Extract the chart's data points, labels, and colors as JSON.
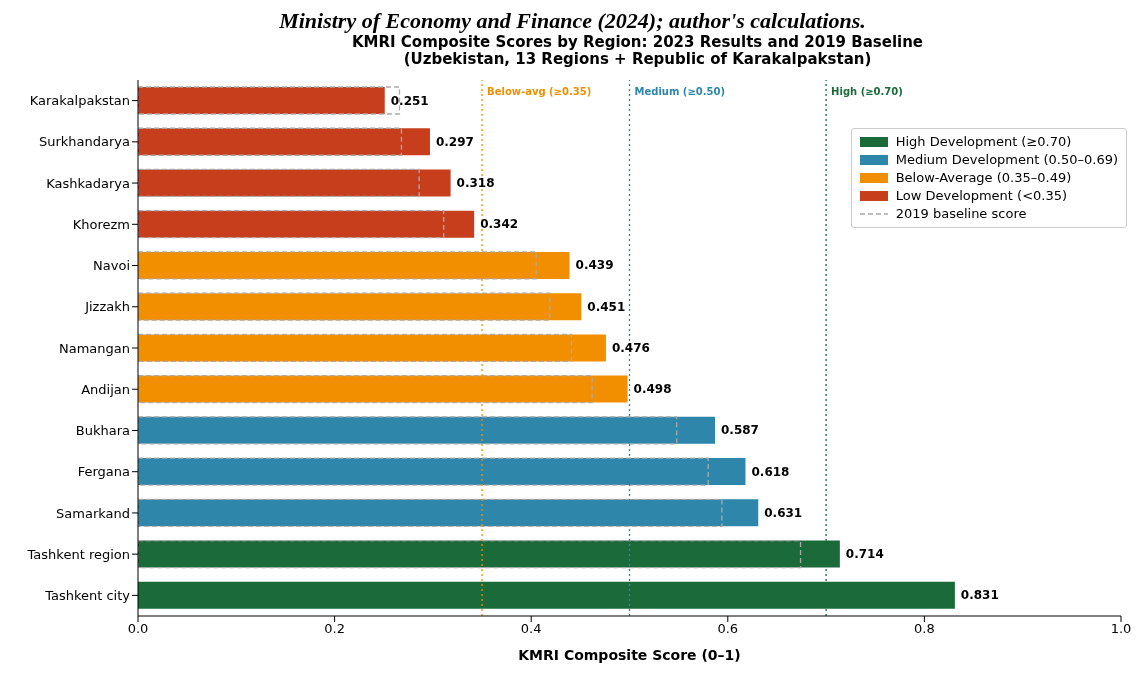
{
  "chart_data": {
    "type": "bar",
    "orientation": "horizontal",
    "title": "KMRI Composite Scores by Region: 2023 Results and 2019 Baseline\n(Uzbekistan, 13 Regions + Republic of Karakalpakstan)",
    "xlabel": "KMRI Composite Score (0–1)",
    "annotations": [
      "Ministry of Economy and Finance (2024); author's calculations."
    ],
    "categories": [
      "Karakalpakstan",
      "Surkhandarya",
      "Kashkadarya",
      "Khorezm",
      "Navoi",
      "Jizzakh",
      "Namangan",
      "Andijan",
      "Bukhara",
      "Fergana",
      "Samarkand",
      "Tashkent region",
      "Tashkent city"
    ],
    "series": [
      {
        "name": "High Development (≥0.70)",
        "color": "#1b6b3a",
        "values": [
          null,
          null,
          null,
          null,
          null,
          null,
          null,
          null,
          null,
          null,
          null,
          0.714,
          0.831
        ],
        "value_labels": [
          null,
          null,
          null,
          null,
          null,
          null,
          null,
          null,
          null,
          null,
          null,
          "0.714",
          "0.831"
        ]
      },
      {
        "name": "Medium Development (0.50–0.69)",
        "color": "#2e86ab",
        "values": [
          null,
          null,
          null,
          null,
          null,
          null,
          null,
          null,
          0.587,
          0.618,
          0.631,
          null,
          null
        ],
        "value_labels": [
          null,
          null,
          null,
          null,
          null,
          null,
          null,
          null,
          "0.587",
          "0.618",
          "0.631",
          null,
          null
        ]
      },
      {
        "name": "Below-Average (0.35–0.49)",
        "color": "#f18f01",
        "values": [
          null,
          null,
          null,
          null,
          0.439,
          0.451,
          0.476,
          0.498,
          null,
          null,
          null,
          null,
          null
        ],
        "value_labels": [
          null,
          null,
          null,
          null,
          "0.439",
          "0.451",
          "0.476",
          "0.498",
          null,
          null,
          null,
          null,
          null
        ]
      },
      {
        "name": "Low Development (<0.35)",
        "color": "#c73e1d",
        "values": [
          0.251,
          0.297,
          0.318,
          0.342,
          null,
          null,
          null,
          null,
          null,
          null,
          null,
          null,
          null
        ],
        "value_labels": [
          "0.251",
          "0.297",
          "0.318",
          "0.342",
          null,
          null,
          null,
          null,
          null,
          null,
          null,
          null,
          null
        ]
      },
      {
        "name": "2019 baseline score",
        "color": "#aaaaaa",
        "line_style": "dashed",
        "values": [
          0.266,
          0.268,
          0.286,
          0.311,
          0.405,
          0.419,
          0.441,
          0.462,
          0.548,
          0.58,
          0.594,
          0.674,
          null
        ]
      }
    ],
    "xlim": [
      0,
      1
    ],
    "xticks": [
      {
        "value": 0,
        "label": "0.0"
      },
      0.2,
      0.4,
      0.6,
      0.8,
      {
        "value": 1,
        "label": "1.0"
      }
    ],
    "ref_lines": [
      {
        "axis": "x",
        "value": 0.35,
        "label": "Below-avg (≥0.35)",
        "color": "#f18f01",
        "line_style": "dotted"
      },
      {
        "axis": "x",
        "value": 0.5,
        "label": "Medium (≥0.50)",
        "color": "#2e86ab",
        "line_style": "dotted"
      },
      {
        "axis": "x",
        "value": 0.7,
        "label": "High (≥0.70)",
        "color": "#1b6b3a",
        "line_style": "dotted"
      }
    ],
    "legend": "top right"
  }
}
